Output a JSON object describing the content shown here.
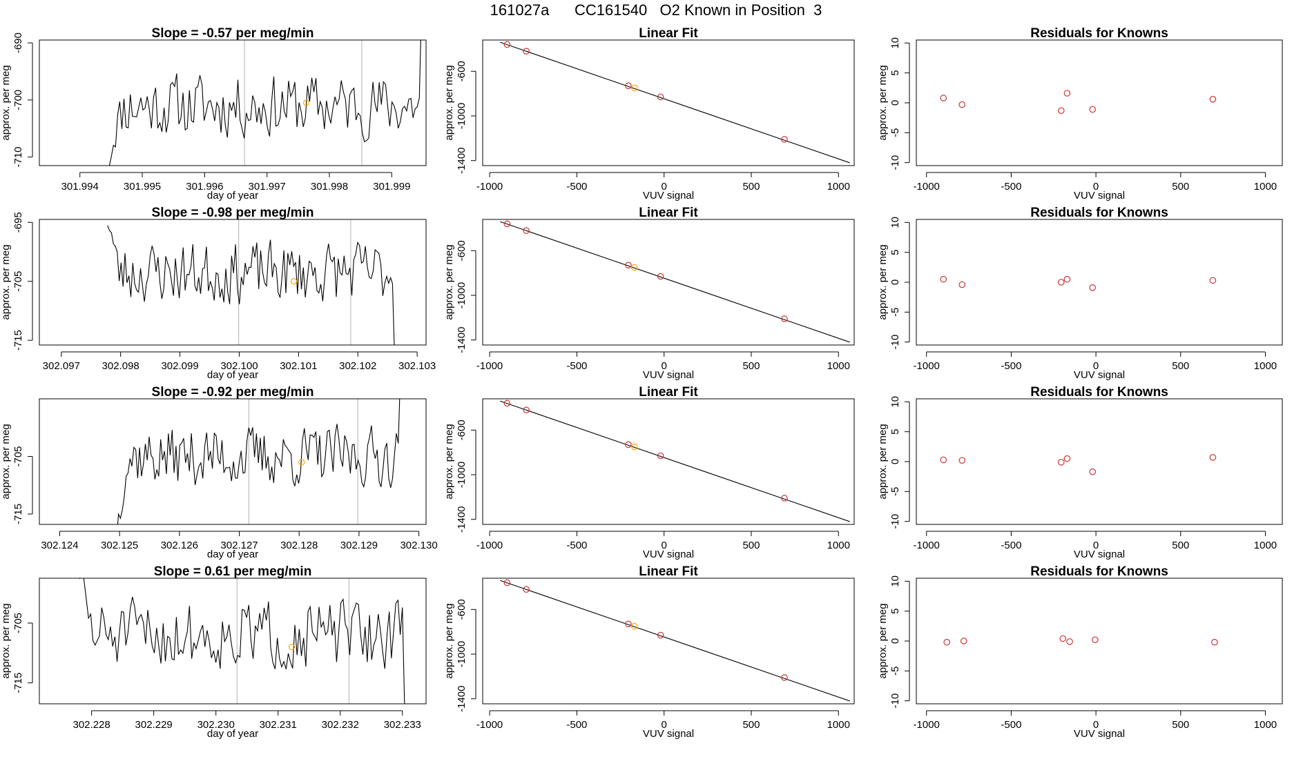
{
  "page": {
    "title": "161027a      CC161540   O2 Known in Position  3"
  },
  "colors": {
    "line": "#000000",
    "frame": "#000000",
    "marker_vline": "#bebebe",
    "point": "#cd3333",
    "known": "#ffa500"
  },
  "chart_data": [
    {
      "type": "line",
      "title": "Slope =  -0.57  per meg/min",
      "xlabel": "day of year",
      "ylabel": "approx. per meg",
      "xlim": [
        301.99335,
        301.99955
      ],
      "ylim": [
        -711.5,
        -689.5
      ],
      "xticks": [
        "301.994",
        "301.995",
        "301.996",
        "301.997",
        "301.998",
        "301.999"
      ],
      "xtick_values": [
        301.994,
        301.995,
        301.996,
        301.997,
        301.998,
        301.999
      ],
      "yticks": [
        "-710",
        "-700",
        "-690"
      ],
      "ytick_values": [
        -710,
        -700,
        -690
      ],
      "vlines": [
        301.99664,
        301.99852
      ],
      "highlight": {
        "x": 301.99763,
        "y": -700.5
      },
      "series": {
        "x0": 301.99447,
        "x1": 301.99951,
        "v0": -710,
        "base": -701,
        "amp": 3.2,
        "seed": 11,
        "start_low": true,
        "end": -684
      }
    },
    {
      "type": "scatter",
      "title": "Linear Fit",
      "xlabel": "VUV signal",
      "ylabel": "approx. per meg",
      "xlim": [
        -1040,
        1090
      ],
      "ylim": [
        -1445,
        -320
      ],
      "xticks": [
        "-1000",
        "-500",
        "0",
        "500",
        "1000"
      ],
      "xtick_values": [
        -1000,
        -500,
        0,
        500,
        1000
      ],
      "yticks": [
        "-600",
        "-1000",
        "-1400"
      ],
      "ytick_values": [
        -600,
        -1000,
        -1400
      ],
      "fit_line": {
        "x": [
          -940,
          1065
        ],
        "y": [
          -340,
          -1420
        ]
      },
      "points": {
        "x": [
          -900,
          -790,
          -205,
          -170,
          -20,
          690
        ],
        "y": [
          -360,
          -420,
          -730,
          -750,
          -830,
          -1210
        ]
      },
      "known_index": 3
    },
    {
      "type": "scatter",
      "title": "Residuals for Knowns",
      "xlabel": "VUV signal",
      "ylabel": "approx. per meg",
      "xlim": [
        -1060,
        1100
      ],
      "ylim": [
        -10.5,
        10.5
      ],
      "xticks": [
        "-1000",
        "-500",
        "0",
        "500",
        "1000"
      ],
      "xtick_values": [
        -1000,
        -500,
        0,
        500,
        1000
      ],
      "yticks": [
        "-10",
        "-5",
        "0",
        "5",
        "10"
      ],
      "ytick_values": [
        -10,
        -5,
        0,
        5,
        10
      ],
      "points": {
        "x": [
          -900,
          -790,
          -205,
          -170,
          -20,
          690
        ],
        "y": [
          0.8,
          -0.3,
          -1.3,
          1.6,
          -1.1,
          0.6
        ]
      }
    },
    {
      "type": "line",
      "title": "Slope =  -0.98  per meg/min",
      "xlabel": "day of year",
      "ylabel": "approx. per meg",
      "xlim": [
        302.09663,
        302.10315
      ],
      "ylim": [
        -715.8,
        -694.5
      ],
      "xticks": [
        "302.097",
        "302.098",
        "302.099",
        "302.100",
        "302.101",
        "302.102",
        "302.103"
      ],
      "xtick_values": [
        302.097,
        302.098,
        302.099,
        302.1,
        302.101,
        302.102,
        302.103
      ],
      "yticks": [
        "-715",
        "-705",
        "-695"
      ],
      "ytick_values": [
        -715,
        -705,
        -695
      ],
      "vlines": [
        302.09999,
        302.10188
      ],
      "highlight": {
        "x": 302.10092,
        "y": -705
      },
      "series": {
        "x0": 302.09778,
        "x1": 302.10265,
        "v0": -694,
        "base": -703.5,
        "amp": 3.0,
        "seed": 23,
        "start_low": false,
        "end": -717
      }
    },
    {
      "type": "scatter",
      "title": "Linear Fit",
      "xlabel": "VUV signal",
      "ylabel": "approx. per meg",
      "xlim": [
        -1040,
        1090
      ],
      "ylim": [
        -1445,
        -320
      ],
      "xticks": [
        "-1000",
        "-500",
        "0",
        "500",
        "1000"
      ],
      "xtick_values": [
        -1000,
        -500,
        0,
        500,
        1000
      ],
      "yticks": [
        "-600",
        "-1000",
        "-1400"
      ],
      "ytick_values": [
        -600,
        -1000,
        -1400
      ],
      "fit_line": {
        "x": [
          -940,
          1065
        ],
        "y": [
          -340,
          -1420
        ]
      },
      "points": {
        "x": [
          -900,
          -790,
          -205,
          -170,
          -20,
          690
        ],
        "y": [
          -360,
          -420,
          -730,
          -750,
          -830,
          -1210
        ]
      },
      "known_index": 3
    },
    {
      "type": "scatter",
      "title": "Residuals for Knowns",
      "xlabel": "VUV signal",
      "ylabel": "approx. per meg",
      "xlim": [
        -1060,
        1100
      ],
      "ylim": [
        -10.5,
        10.5
      ],
      "xticks": [
        "-1000",
        "-500",
        "0",
        "500",
        "1000"
      ],
      "xtick_values": [
        -1000,
        -500,
        0,
        500,
        1000
      ],
      "yticks": [
        "-10",
        "-5",
        "0",
        "5",
        "10"
      ],
      "ytick_values": [
        -10,
        -5,
        0,
        5,
        10
      ],
      "points": {
        "x": [
          -900,
          -790,
          -205,
          -170,
          -20,
          690
        ],
        "y": [
          0.5,
          -0.4,
          0.0,
          0.5,
          -0.9,
          0.3
        ]
      }
    },
    {
      "type": "line",
      "title": "Slope =  -0.92  per meg/min",
      "xlabel": "day of year",
      "ylabel": "approx. per meg",
      "xlim": [
        302.12366,
        302.13012
      ],
      "ylim": [
        -716.8,
        -695.0
      ],
      "xticks": [
        "302.124",
        "302.125",
        "302.126",
        "302.127",
        "302.128",
        "302.129",
        "302.130"
      ],
      "xtick_values": [
        302.124,
        302.125,
        302.126,
        302.127,
        302.128,
        302.129,
        302.13
      ],
      "yticks": [
        "-715",
        "-705"
      ],
      "ytick_values": [
        -715,
        -705
      ],
      "vlines": [
        302.12716,
        302.12898
      ],
      "highlight": {
        "x": 302.12804,
        "y": -706
      },
      "series": {
        "x0": 302.12495,
        "x1": 302.12972,
        "v0": -718,
        "base": -705,
        "amp": 3.0,
        "seed": 37,
        "start_low": true,
        "end": -692
      }
    },
    {
      "type": "scatter",
      "title": "Linear Fit",
      "xlabel": "VUV signal",
      "ylabel": "approx. per meg",
      "xlim": [
        -1040,
        1090
      ],
      "ylim": [
        -1445,
        -320
      ],
      "xticks": [
        "-1000",
        "-500",
        "0",
        "500",
        "1000"
      ],
      "xtick_values": [
        -1000,
        -500,
        0,
        500,
        1000
      ],
      "yticks": [
        "-600",
        "-1000",
        "-1400"
      ],
      "ytick_values": [
        -600,
        -1000,
        -1400
      ],
      "fit_line": {
        "x": [
          -940,
          1065
        ],
        "y": [
          -340,
          -1420
        ]
      },
      "points": {
        "x": [
          -900,
          -790,
          -205,
          -170,
          -20,
          690
        ],
        "y": [
          -360,
          -420,
          -730,
          -750,
          -830,
          -1210
        ]
      },
      "known_index": 3
    },
    {
      "type": "scatter",
      "title": "Residuals for Knowns",
      "xlabel": "VUV signal",
      "ylabel": "approx. per meg",
      "xlim": [
        -1060,
        1100
      ],
      "ylim": [
        -10.5,
        10.5
      ],
      "xticks": [
        "-1000",
        "-500",
        "0",
        "500",
        "1000"
      ],
      "xtick_values": [
        -1000,
        -500,
        0,
        500,
        1000
      ],
      "yticks": [
        "-10",
        "-5",
        "0",
        "5",
        "10"
      ],
      "ytick_values": [
        -10,
        -5,
        0,
        5,
        10
      ],
      "points": {
        "x": [
          -900,
          -790,
          -205,
          -170,
          -20,
          690
        ],
        "y": [
          0.3,
          0.2,
          -0.1,
          0.5,
          -1.7,
          0.7
        ]
      }
    },
    {
      "type": "line",
      "title": "Slope =  0.61  per meg/min",
      "xlabel": "day of year",
      "ylabel": "approx. per meg",
      "xlim": [
        302.22716,
        302.23338
      ],
      "ylim": [
        -718.5,
        -697.5
      ],
      "xticks": [
        "302.228",
        "302.229",
        "302.230",
        "302.231",
        "302.232",
        "302.233"
      ],
      "xtick_values": [
        302.228,
        302.229,
        302.23,
        302.231,
        302.232,
        302.233
      ],
      "yticks": [
        "-715",
        "-705"
      ],
      "ytick_values": [
        -715,
        -705
      ],
      "vlines": [
        302.23034,
        302.23214
      ],
      "highlight": {
        "x": 302.23122,
        "y": -709
      },
      "series": {
        "x0": 302.22781,
        "x1": 302.23307,
        "v0": -696,
        "base": -707,
        "amp": 3.3,
        "seed": 51,
        "start_low": false,
        "end": -719
      }
    },
    {
      "type": "scatter",
      "title": "Linear Fit",
      "xlabel": "VUV signal",
      "ylabel": "approx. per meg",
      "xlim": [
        -1040,
        1090
      ],
      "ylim": [
        -1445,
        -320
      ],
      "xticks": [
        "-1000",
        "-500",
        "0",
        "500",
        "1000"
      ],
      "xtick_values": [
        -1000,
        -500,
        0,
        500,
        1000
      ],
      "yticks": [
        "-600",
        "-1000",
        "-1400"
      ],
      "ytick_values": [
        -600,
        -1000,
        -1400
      ],
      "fit_line": {
        "x": [
          -940,
          1065
        ],
        "y": [
          -340,
          -1420
        ]
      },
      "points": {
        "x": [
          -900,
          -790,
          -205,
          -170,
          -20,
          690
        ],
        "y": [
          -360,
          -420,
          -730,
          -750,
          -830,
          -1210
        ]
      },
      "known_index": 3
    },
    {
      "type": "scatter",
      "title": "Residuals for Knowns",
      "xlabel": "VUV signal",
      "ylabel": "approx. per meg",
      "xlim": [
        -1060,
        1100
      ],
      "ylim": [
        -10.5,
        10.5
      ],
      "xticks": [
        "-1000",
        "-500",
        "0",
        "500",
        "1000"
      ],
      "xtick_values": [
        -1000,
        -500,
        0,
        500,
        1000
      ],
      "yticks": [
        "-10",
        "-5",
        "0",
        "5",
        "10"
      ],
      "ytick_values": [
        -10,
        -5,
        0,
        5,
        10
      ],
      "points": {
        "x": [
          -880,
          -780,
          -195,
          -155,
          -5,
          700
        ],
        "y": [
          -0.2,
          0.0,
          0.4,
          -0.1,
          0.2,
          -0.2
        ]
      }
    }
  ]
}
